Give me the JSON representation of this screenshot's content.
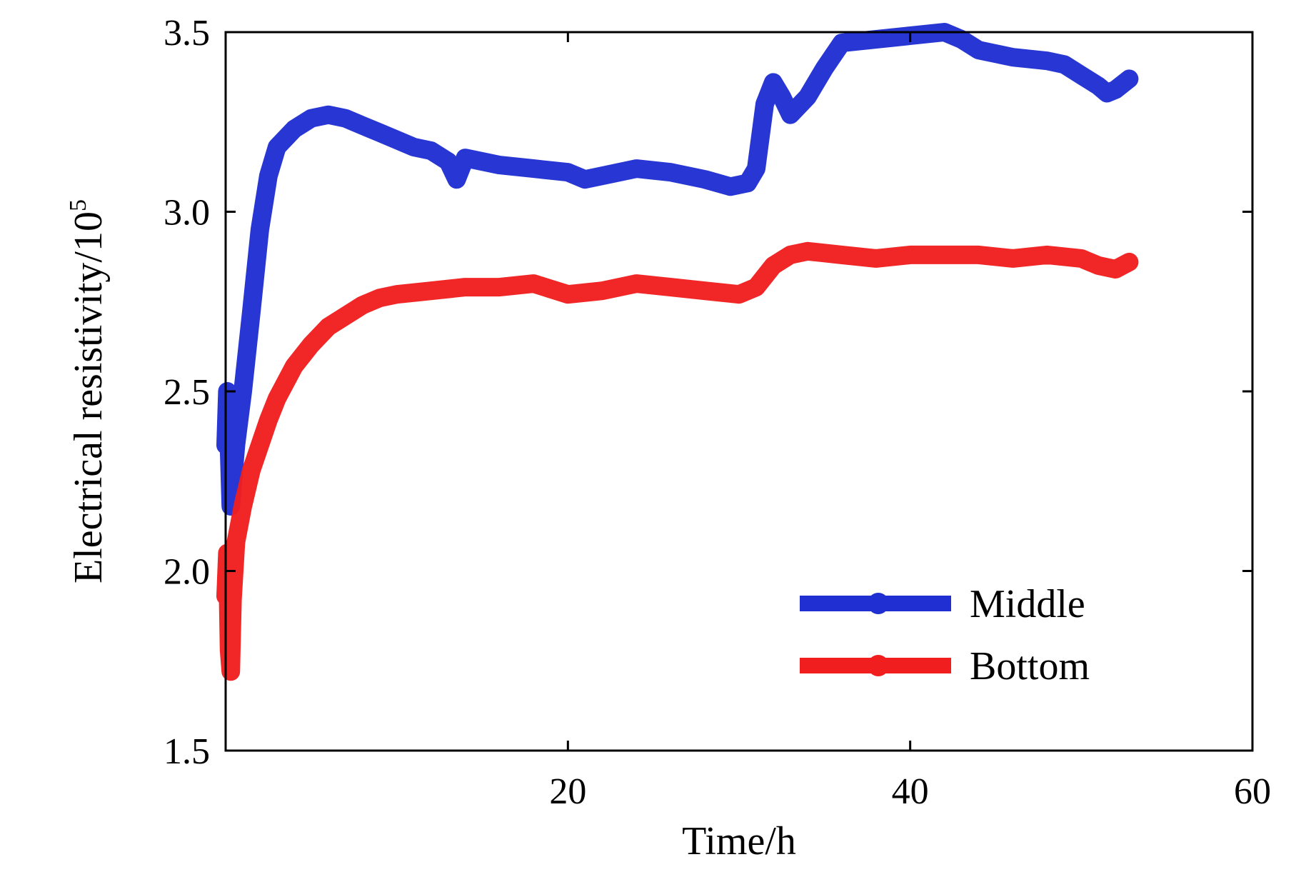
{
  "chart_data": {
    "type": "line",
    "title": "",
    "xlabel": "Time/h",
    "ylabel": "Electrical resistivity/10",
    "ylabel_exponent": "5",
    "xlim": [
      0,
      60
    ],
    "ylim": [
      1.5,
      3.5
    ],
    "xticks": [
      20,
      40,
      60
    ],
    "xtick_labels": [
      "20",
      "40",
      "60"
    ],
    "yticks": [
      1.5,
      2.0,
      2.5,
      3.0,
      3.5
    ],
    "ytick_labels": [
      "1.5",
      "2.0",
      "2.5",
      "3.0",
      "3.5"
    ],
    "grid": false,
    "legend_position": "bottom-right",
    "series": [
      {
        "name": "Middle",
        "color": "#1f2fd1",
        "x": [
          0,
          0.1,
          0.3,
          0.6,
          1.0,
          1.5,
          2.0,
          2.5,
          3.0,
          4.0,
          5.0,
          6.0,
          7.0,
          8.0,
          9.0,
          10.0,
          11.0,
          12.0,
          13.0,
          13.5,
          14.0,
          15.0,
          16.0,
          18.0,
          20.0,
          21.0,
          22.0,
          24.0,
          26.0,
          28.0,
          29.5,
          30.5,
          31.0,
          31.5,
          32.0,
          32.5,
          33.0,
          34.0,
          35.0,
          36.0,
          38.0,
          40.0,
          42.0,
          43.0,
          44.0,
          46.0,
          48.0,
          49.0,
          50.0,
          51.0,
          51.5,
          52.0,
          52.8
        ],
        "values": [
          2.35,
          2.5,
          2.18,
          2.35,
          2.5,
          2.72,
          2.95,
          3.1,
          3.18,
          3.23,
          3.26,
          3.27,
          3.26,
          3.24,
          3.22,
          3.2,
          3.18,
          3.17,
          3.14,
          3.09,
          3.15,
          3.14,
          3.13,
          3.12,
          3.11,
          3.09,
          3.1,
          3.12,
          3.11,
          3.09,
          3.07,
          3.08,
          3.12,
          3.3,
          3.36,
          3.32,
          3.27,
          3.32,
          3.4,
          3.47,
          3.48,
          3.49,
          3.5,
          3.48,
          3.45,
          3.43,
          3.42,
          3.41,
          3.38,
          3.35,
          3.33,
          3.34,
          3.37
        ]
      },
      {
        "name": "Bottom",
        "color": "#f01e1e",
        "x": [
          0,
          0.1,
          0.2,
          0.3,
          0.4,
          0.6,
          1.0,
          1.5,
          2.0,
          2.5,
          3.0,
          4.0,
          5.0,
          6.0,
          7.0,
          8.0,
          9.0,
          10.0,
          12.0,
          14.0,
          16.0,
          18.0,
          20.0,
          22.0,
          24.0,
          26.0,
          28.0,
          30.0,
          31.0,
          32.0,
          33.0,
          34.0,
          36.0,
          38.0,
          40.0,
          42.0,
          44.0,
          46.0,
          48.0,
          50.0,
          51.0,
          52.0,
          52.8
        ],
        "values": [
          1.93,
          2.05,
          1.78,
          1.72,
          1.92,
          2.08,
          2.18,
          2.28,
          2.35,
          2.42,
          2.48,
          2.57,
          2.63,
          2.68,
          2.71,
          2.74,
          2.76,
          2.77,
          2.78,
          2.79,
          2.79,
          2.8,
          2.77,
          2.78,
          2.8,
          2.79,
          2.78,
          2.77,
          2.79,
          2.85,
          2.88,
          2.89,
          2.88,
          2.87,
          2.88,
          2.88,
          2.88,
          2.87,
          2.88,
          2.87,
          2.85,
          2.84,
          2.86
        ]
      }
    ]
  }
}
